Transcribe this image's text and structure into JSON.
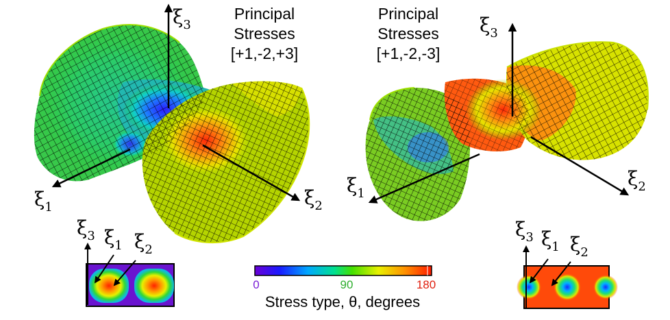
{
  "left_panel": {
    "title_lines": [
      "Principal",
      "Stresses",
      "[+1,-2,+3]"
    ],
    "axes": [
      {
        "symbol": "ξ",
        "sub": "3"
      },
      {
        "symbol": "ξ",
        "sub": "1"
      },
      {
        "symbol": "ξ",
        "sub": "2"
      }
    ],
    "inset_axes": [
      {
        "symbol": "ξ",
        "sub": "3"
      },
      {
        "symbol": "ξ",
        "sub": "1"
      },
      {
        "symbol": "ξ",
        "sub": "2"
      }
    ]
  },
  "right_panel": {
    "title_lines": [
      "Principal",
      "Stresses",
      "[+1,-2,-3]"
    ],
    "axes": [
      {
        "symbol": "ξ",
        "sub": "3"
      },
      {
        "symbol": "ξ",
        "sub": "1"
      },
      {
        "symbol": "ξ",
        "sub": "2"
      }
    ],
    "inset_axes": [
      {
        "symbol": "ξ",
        "sub": "3"
      },
      {
        "symbol": "ξ",
        "sub": "1"
      },
      {
        "symbol": "ξ",
        "sub": "2"
      }
    ]
  },
  "colorbar": {
    "ticks": [
      "0",
      "90",
      "180"
    ],
    "tick_colors": [
      "#7a1fd6",
      "#2fae2f",
      "#e02010"
    ],
    "label": "Stress type, θ, degrees"
  },
  "colors": {
    "mesh_line": "#c8f000",
    "mesh_bg": "#000000",
    "low": "#3b2cff",
    "mid": "#22cc22",
    "high": "#ff3a0a"
  }
}
